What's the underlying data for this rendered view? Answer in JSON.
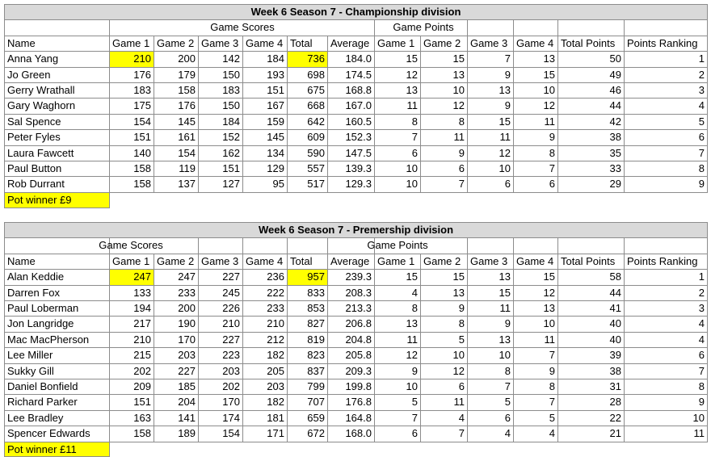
{
  "tables": [
    {
      "title": "Week 6 Season 7 - Championship division",
      "group_headers": [
        "Game Scores",
        "Game Points"
      ],
      "columns": [
        "Name",
        "Game 1",
        "Game 2",
        "Game 3",
        "Game 4",
        "Total",
        "Average",
        "Game 1",
        "Game 2",
        "Game 3",
        "Game 4",
        "Total Points",
        "Points Ranking"
      ],
      "rows": [
        [
          "Anna Yang",
          210,
          200,
          142,
          184,
          736,
          "184.0",
          15,
          15,
          7,
          13,
          50,
          1
        ],
        [
          "Jo Green",
          176,
          179,
          150,
          193,
          698,
          "174.5",
          12,
          13,
          9,
          15,
          49,
          2
        ],
        [
          "Gerry Wrathall",
          183,
          158,
          183,
          151,
          675,
          "168.8",
          13,
          10,
          13,
          10,
          46,
          3
        ],
        [
          "Gary Waghorn",
          175,
          176,
          150,
          167,
          668,
          "167.0",
          11,
          12,
          9,
          12,
          44,
          4
        ],
        [
          "Sal Spence",
          154,
          145,
          184,
          159,
          642,
          "160.5",
          8,
          8,
          15,
          11,
          42,
          5
        ],
        [
          "Peter Fyles",
          151,
          161,
          152,
          145,
          609,
          "152.3",
          7,
          11,
          11,
          9,
          38,
          6
        ],
        [
          "Laura Fawcett",
          140,
          154,
          162,
          134,
          590,
          "147.5",
          6,
          9,
          12,
          8,
          35,
          7
        ],
        [
          "Paul Button",
          158,
          119,
          151,
          129,
          557,
          "139.3",
          10,
          6,
          10,
          7,
          33,
          8
        ],
        [
          "Rob Durrant",
          158,
          137,
          127,
          95,
          517,
          "129.3",
          10,
          7,
          6,
          6,
          29,
          9
        ]
      ],
      "highlighted_cells": [
        [
          0,
          1
        ],
        [
          0,
          5
        ]
      ],
      "pot_winner": "Pot winner £9"
    },
    {
      "title": "Week 6 Season 7 - Premership division",
      "group_headers": [
        "Game Scores",
        "Game Points"
      ],
      "columns": [
        "Name",
        "Game 1",
        "Game 2",
        "Game 3",
        "Game 4",
        "Total",
        "Average",
        "Game 1",
        "Game 2",
        "Game 3",
        "Game 4",
        "Total Points",
        "Points Ranking"
      ],
      "rows": [
        [
          "Alan Keddie",
          247,
          247,
          227,
          236,
          957,
          "239.3",
          15,
          15,
          13,
          15,
          58,
          1
        ],
        [
          "Darren Fox",
          133,
          233,
          245,
          222,
          833,
          "208.3",
          4,
          13,
          15,
          12,
          44,
          2
        ],
        [
          "Paul Loberman",
          194,
          200,
          226,
          233,
          853,
          "213.3",
          8,
          9,
          11,
          13,
          41,
          3
        ],
        [
          "Jon Langridge",
          217,
          190,
          210,
          210,
          827,
          "206.8",
          13,
          8,
          9,
          10,
          40,
          4
        ],
        [
          "Mac MacPherson",
          210,
          170,
          227,
          212,
          819,
          "204.8",
          11,
          5,
          13,
          11,
          40,
          4
        ],
        [
          "Lee Miller",
          215,
          203,
          223,
          182,
          823,
          "205.8",
          12,
          10,
          10,
          7,
          39,
          6
        ],
        [
          "Sukky Gill",
          202,
          227,
          203,
          205,
          837,
          "209.3",
          9,
          12,
          8,
          9,
          38,
          7
        ],
        [
          "Daniel Bonfield",
          209,
          185,
          202,
          203,
          799,
          "199.8",
          10,
          6,
          7,
          8,
          31,
          8
        ],
        [
          "Richard Parker",
          151,
          204,
          170,
          182,
          707,
          "176.8",
          5,
          11,
          5,
          7,
          28,
          9
        ],
        [
          "Lee Bradley",
          163,
          141,
          174,
          181,
          659,
          "164.8",
          7,
          4,
          6,
          5,
          22,
          10
        ],
        [
          "Spencer Edwards",
          158,
          189,
          154,
          171,
          672,
          "168.0",
          6,
          7,
          4,
          4,
          21,
          11
        ]
      ],
      "highlighted_cells": [
        [
          0,
          1
        ],
        [
          0,
          5
        ]
      ],
      "pot_winner": "Pot winner £11"
    }
  ]
}
